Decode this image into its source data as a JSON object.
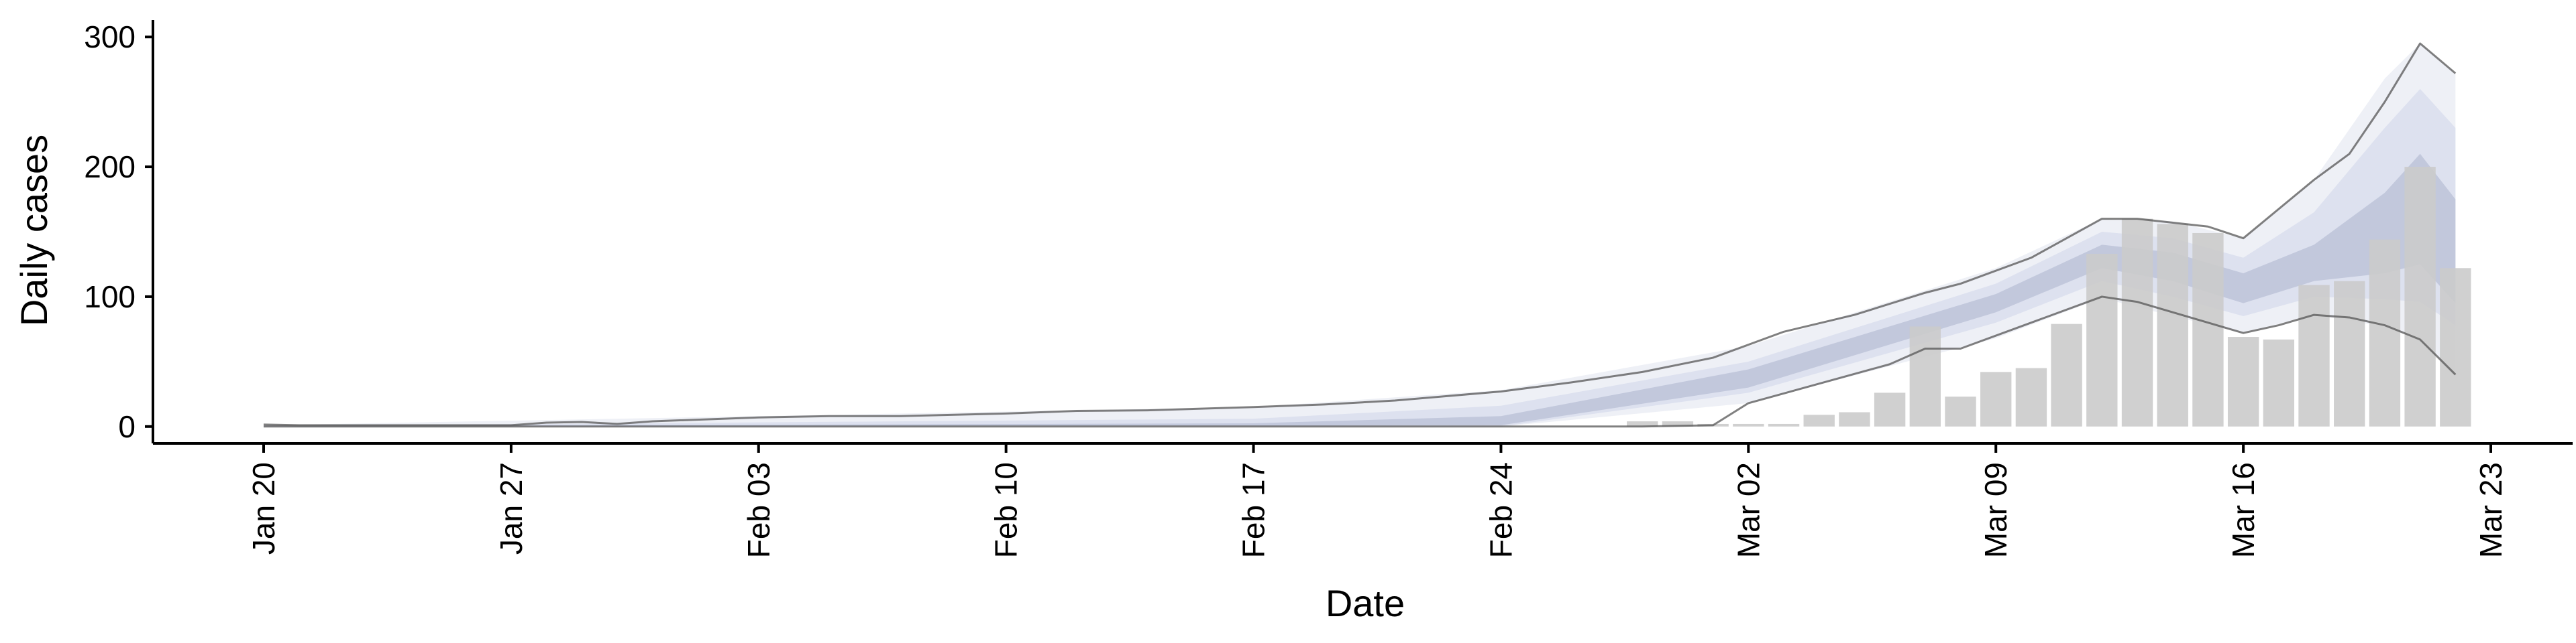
{
  "chart_data": {
    "type": "bar",
    "xlabel": "Date",
    "ylabel": "Daily cases",
    "x_ticks": [
      "Jan 20",
      "Jan 27",
      "Feb 03",
      "Feb 10",
      "Feb 17",
      "Feb 24",
      "Mar 02",
      "Mar 09",
      "Mar 16",
      "Mar 23"
    ],
    "x_range": [
      "2020-01-20",
      "2020-03-23"
    ],
    "y_ticks": [
      0,
      100,
      200,
      300
    ],
    "ylim": [
      -13,
      313
    ],
    "grid": false,
    "colors": {
      "bars": "#cbcbcb",
      "band_outer": "#eef0f6",
      "band_mid": "#dde1ef",
      "band_inner": "#c2c8dc",
      "envelope": "#555555"
    },
    "observed_daily_cases": [
      {
        "date": "2020-02-28",
        "value": 4
      },
      {
        "date": "2020-02-29",
        "value": 4
      },
      {
        "date": "2020-03-01",
        "value": 2
      },
      {
        "date": "2020-03-02",
        "value": 2
      },
      {
        "date": "2020-03-03",
        "value": 2
      },
      {
        "date": "2020-03-04",
        "value": 9
      },
      {
        "date": "2020-03-05",
        "value": 11
      },
      {
        "date": "2020-03-06",
        "value": 26
      },
      {
        "date": "2020-03-07",
        "value": 77
      },
      {
        "date": "2020-03-08",
        "value": 23
      },
      {
        "date": "2020-03-09",
        "value": 42
      },
      {
        "date": "2020-03-10",
        "value": 45
      },
      {
        "date": "2020-03-11",
        "value": 79
      },
      {
        "date": "2020-03-12",
        "value": 133
      },
      {
        "date": "2020-03-13",
        "value": 160
      },
      {
        "date": "2020-03-14",
        "value": 156
      },
      {
        "date": "2020-03-15",
        "value": 149
      },
      {
        "date": "2020-03-16",
        "value": 69
      },
      {
        "date": "2020-03-17",
        "value": 67
      },
      {
        "date": "2020-03-18",
        "value": 109
      },
      {
        "date": "2020-03-19",
        "value": 112
      },
      {
        "date": "2020-03-20",
        "value": 144
      },
      {
        "date": "2020-03-21",
        "value": 200
      },
      {
        "date": "2020-03-22",
        "value": 122
      }
    ],
    "estimate_bands": [
      {
        "date": "2020-01-20",
        "lower": 0,
        "mid_lower": 0,
        "median_lower": 0,
        "median_upper": 0.2,
        "mid_upper": 0.4,
        "upper": 1
      },
      {
        "date": "2020-02-17",
        "lower": 0,
        "mid_lower": 0,
        "median_lower": 0.5,
        "median_upper": 2.5,
        "mid_upper": 6,
        "upper": 15
      },
      {
        "date": "2020-02-24",
        "lower": 0,
        "mid_lower": 0,
        "median_lower": 1,
        "median_upper": 8,
        "mid_upper": 16,
        "upper": 28
      },
      {
        "date": "2020-03-02",
        "lower": 18,
        "mid_lower": 26,
        "median_lower": 30,
        "median_upper": 44,
        "mid_upper": 50,
        "upper": 62
      },
      {
        "date": "2020-03-09",
        "lower": 68,
        "mid_lower": 80,
        "median_lower": 88,
        "median_upper": 102,
        "mid_upper": 110,
        "upper": 122
      },
      {
        "date": "2020-03-12",
        "lower": 99,
        "mid_lower": 112,
        "median_lower": 122,
        "median_upper": 140,
        "mid_upper": 150,
        "upper": 160
      },
      {
        "date": "2020-03-14",
        "lower": 85,
        "mid_lower": 100,
        "median_lower": 112,
        "median_upper": 134,
        "mid_upper": 145,
        "upper": 158
      },
      {
        "date": "2020-03-16",
        "lower": 72,
        "mid_lower": 85,
        "median_lower": 95,
        "median_upper": 118,
        "mid_upper": 130,
        "upper": 145
      },
      {
        "date": "2020-03-18",
        "lower": 86,
        "mid_lower": 100,
        "median_lower": 112,
        "median_upper": 140,
        "mid_upper": 165,
        "upper": 190
      },
      {
        "date": "2020-03-20",
        "lower": 77,
        "mid_lower": 98,
        "median_lower": 118,
        "median_upper": 180,
        "mid_upper": 230,
        "upper": 268
      },
      {
        "date": "2020-03-21",
        "lower": 67,
        "mid_lower": 96,
        "median_lower": 125,
        "median_upper": 210,
        "mid_upper": 260,
        "upper": 295
      },
      {
        "date": "2020-03-22",
        "lower": 40,
        "mid_lower": 78,
        "median_lower": 95,
        "median_upper": 175,
        "mid_upper": 230,
        "upper": 272
      }
    ],
    "envelope_lines": {
      "upper": [
        {
          "date": "2020-01-20",
          "value": 1.5
        },
        {
          "date": "2020-01-21",
          "value": 1
        },
        {
          "date": "2020-01-27",
          "value": 1
        },
        {
          "date": "2020-01-28",
          "value": 3
        },
        {
          "date": "2020-01-29",
          "value": 3.5
        },
        {
          "date": "2020-01-30",
          "value": 2
        },
        {
          "date": "2020-01-31",
          "value": 4
        },
        {
          "date": "2020-02-03",
          "value": 7
        },
        {
          "date": "2020-02-05",
          "value": 8
        },
        {
          "date": "2020-02-07",
          "value": 8
        },
        {
          "date": "2020-02-10",
          "value": 10
        },
        {
          "date": "2020-02-12",
          "value": 12
        },
        {
          "date": "2020-02-14",
          "value": 12.5
        },
        {
          "date": "2020-02-17",
          "value": 15
        },
        {
          "date": "2020-02-19",
          "value": 17
        },
        {
          "date": "2020-02-21",
          "value": 20
        },
        {
          "date": "2020-02-24",
          "value": 27
        },
        {
          "date": "2020-02-26",
          "value": 34
        },
        {
          "date": "2020-02-28",
          "value": 42
        },
        {
          "date": "2020-03-01",
          "value": 53
        },
        {
          "date": "2020-03-03",
          "value": 73
        },
        {
          "date": "2020-03-05",
          "value": 86
        },
        {
          "date": "2020-03-07",
          "value": 103
        },
        {
          "date": "2020-03-08",
          "value": 110
        },
        {
          "date": "2020-03-10",
          "value": 130
        },
        {
          "date": "2020-03-12",
          "value": 160
        },
        {
          "date": "2020-03-13",
          "value": 160
        },
        {
          "date": "2020-03-15",
          "value": 154
        },
        {
          "date": "2020-03-16",
          "value": 145
        },
        {
          "date": "2020-03-18",
          "value": 190
        },
        {
          "date": "2020-03-19",
          "value": 210
        },
        {
          "date": "2020-03-20",
          "value": 250
        },
        {
          "date": "2020-03-21",
          "value": 295
        },
        {
          "date": "2020-03-22",
          "value": 272
        }
      ],
      "lower": [
        {
          "date": "2020-01-20",
          "value": 0
        },
        {
          "date": "2020-02-28",
          "value": 0
        },
        {
          "date": "2020-03-01",
          "value": 1
        },
        {
          "date": "2020-03-02",
          "value": 18
        },
        {
          "date": "2020-03-04",
          "value": 33
        },
        {
          "date": "2020-03-06",
          "value": 48
        },
        {
          "date": "2020-03-07",
          "value": 60
        },
        {
          "date": "2020-03-08",
          "value": 60
        },
        {
          "date": "2020-03-10",
          "value": 80
        },
        {
          "date": "2020-03-12",
          "value": 100
        },
        {
          "date": "2020-03-13",
          "value": 96
        },
        {
          "date": "2020-03-15",
          "value": 80
        },
        {
          "date": "2020-03-16",
          "value": 72
        },
        {
          "date": "2020-03-17",
          "value": 78
        },
        {
          "date": "2020-03-18",
          "value": 86
        },
        {
          "date": "2020-03-19",
          "value": 84
        },
        {
          "date": "2020-03-20",
          "value": 78
        },
        {
          "date": "2020-03-21",
          "value": 67
        },
        {
          "date": "2020-03-22",
          "value": 40
        }
      ]
    }
  }
}
